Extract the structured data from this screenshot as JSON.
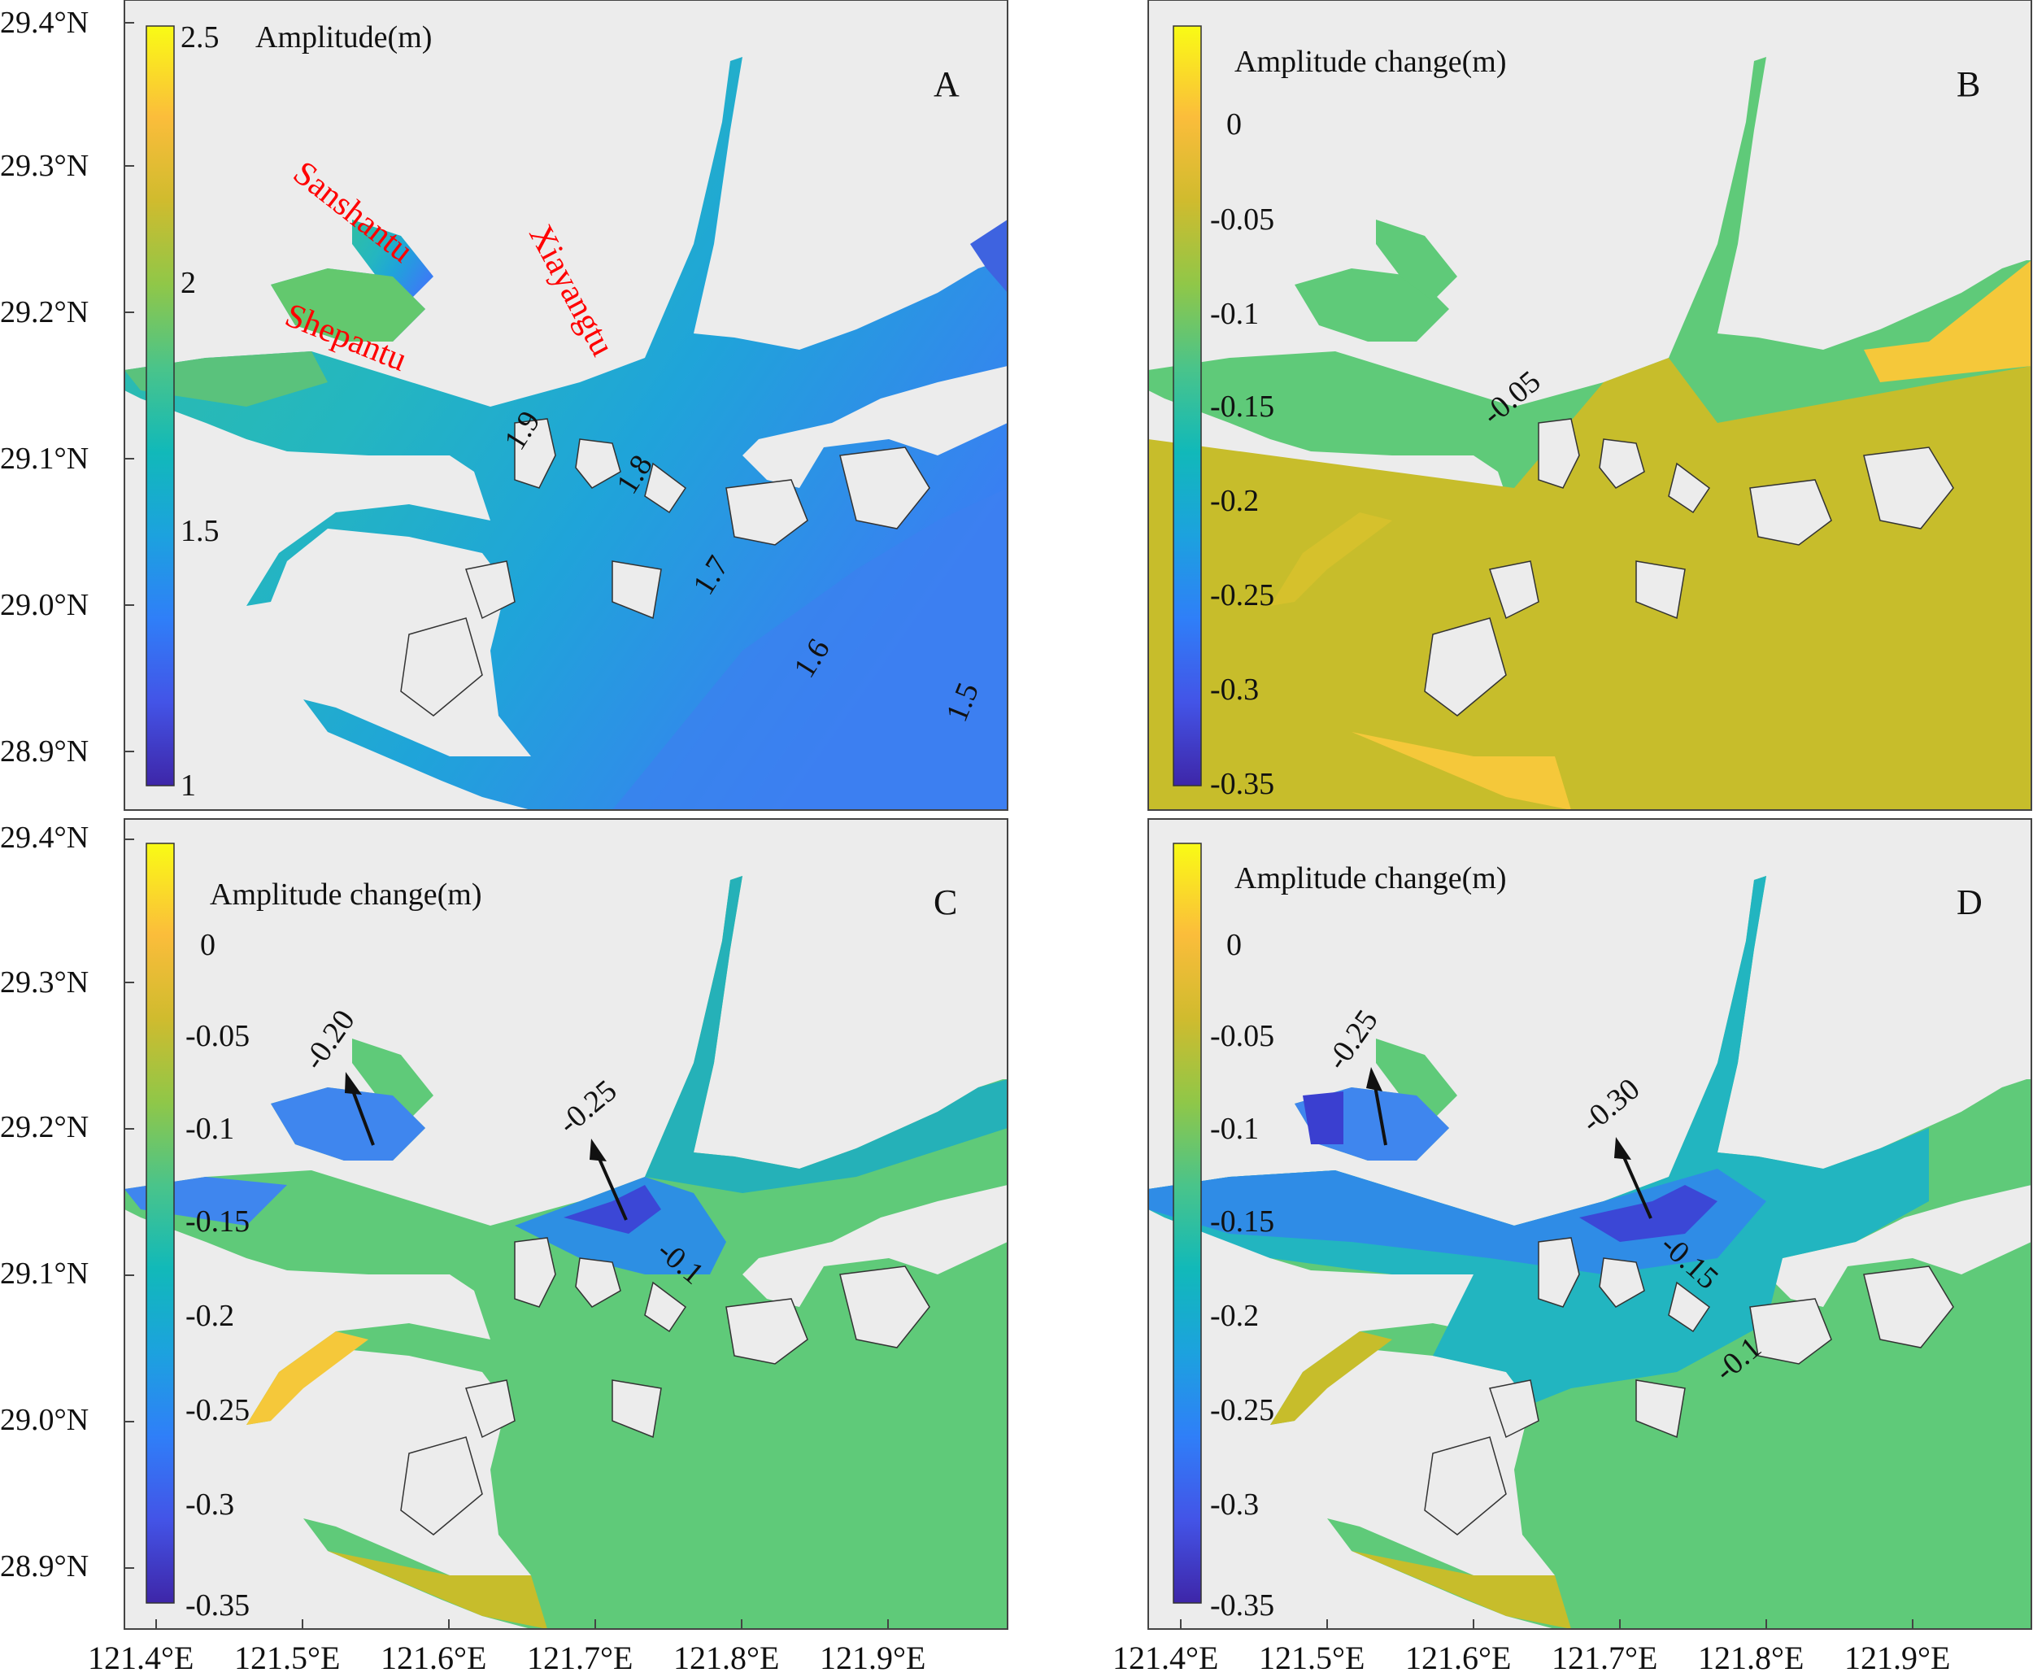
{
  "axes": {
    "y_ticks": [
      "29.4°N",
      "29.3°N",
      "29.2°N",
      "29.1°N",
      "29.0°N",
      "28.9°N"
    ],
    "x_ticks": [
      "121.4°E",
      "121.5°E",
      "121.6°E",
      "121.7°E",
      "121.8°E",
      "121.9°E"
    ]
  },
  "colors": {
    "land": "#ececec",
    "sea_deep_blue": "#3f7ef2",
    "sea_mid_blue": "#1aa9d6",
    "sea_teal": "#27b9b3",
    "sea_green": "#5fca79",
    "olive": "#c7bd2b",
    "yellow_orange": "#f5c83a",
    "dark_blue": "#3a3fd0",
    "place_label_red": "#ff0000",
    "colormap": [
      "#3e26a8",
      "#4354e7",
      "#2f7ff8",
      "#1ca2de",
      "#11b9b9",
      "#4ac48a",
      "#90c748",
      "#d0bb2e",
      "#fbbd3b",
      "#f9fb15"
    ]
  },
  "panels": [
    {
      "letter": "A",
      "colorbar_title": "Amplitude(m)",
      "colorbar_ticks": [
        "2.5",
        "2",
        "1.5",
        "1"
      ],
      "place_labels": [
        "Sanshantu",
        "Shepantu",
        "Xiayangtu"
      ],
      "contour_labels": [
        "1.9",
        "1.8",
        "1.7",
        "1.6",
        "1.5"
      ]
    },
    {
      "letter": "B",
      "colorbar_title": "Amplitude change(m)",
      "colorbar_ticks": [
        "0",
        "-0.05",
        "-0.1",
        "-0.15",
        "-0.2",
        "-0.25",
        "-0.3",
        "-0.35"
      ],
      "contour_labels": [
        "-0.05"
      ]
    },
    {
      "letter": "C",
      "colorbar_title": "Amplitude change(m)",
      "colorbar_ticks": [
        "0",
        "-0.05",
        "-0.1",
        "-0.15",
        "-0.2",
        "-0.25",
        "-0.3",
        "-0.35"
      ],
      "contour_labels": [
        "-0.20",
        "-0.25",
        "-0.1"
      ]
    },
    {
      "letter": "D",
      "colorbar_title": "Amplitude change(m)",
      "colorbar_ticks": [
        "0",
        "-0.05",
        "-0.1",
        "-0.15",
        "-0.2",
        "-0.25",
        "-0.3",
        "-0.35"
      ],
      "contour_labels": [
        "-0.25",
        "-0.30",
        "-0.15",
        "-0.1"
      ]
    }
  ]
}
